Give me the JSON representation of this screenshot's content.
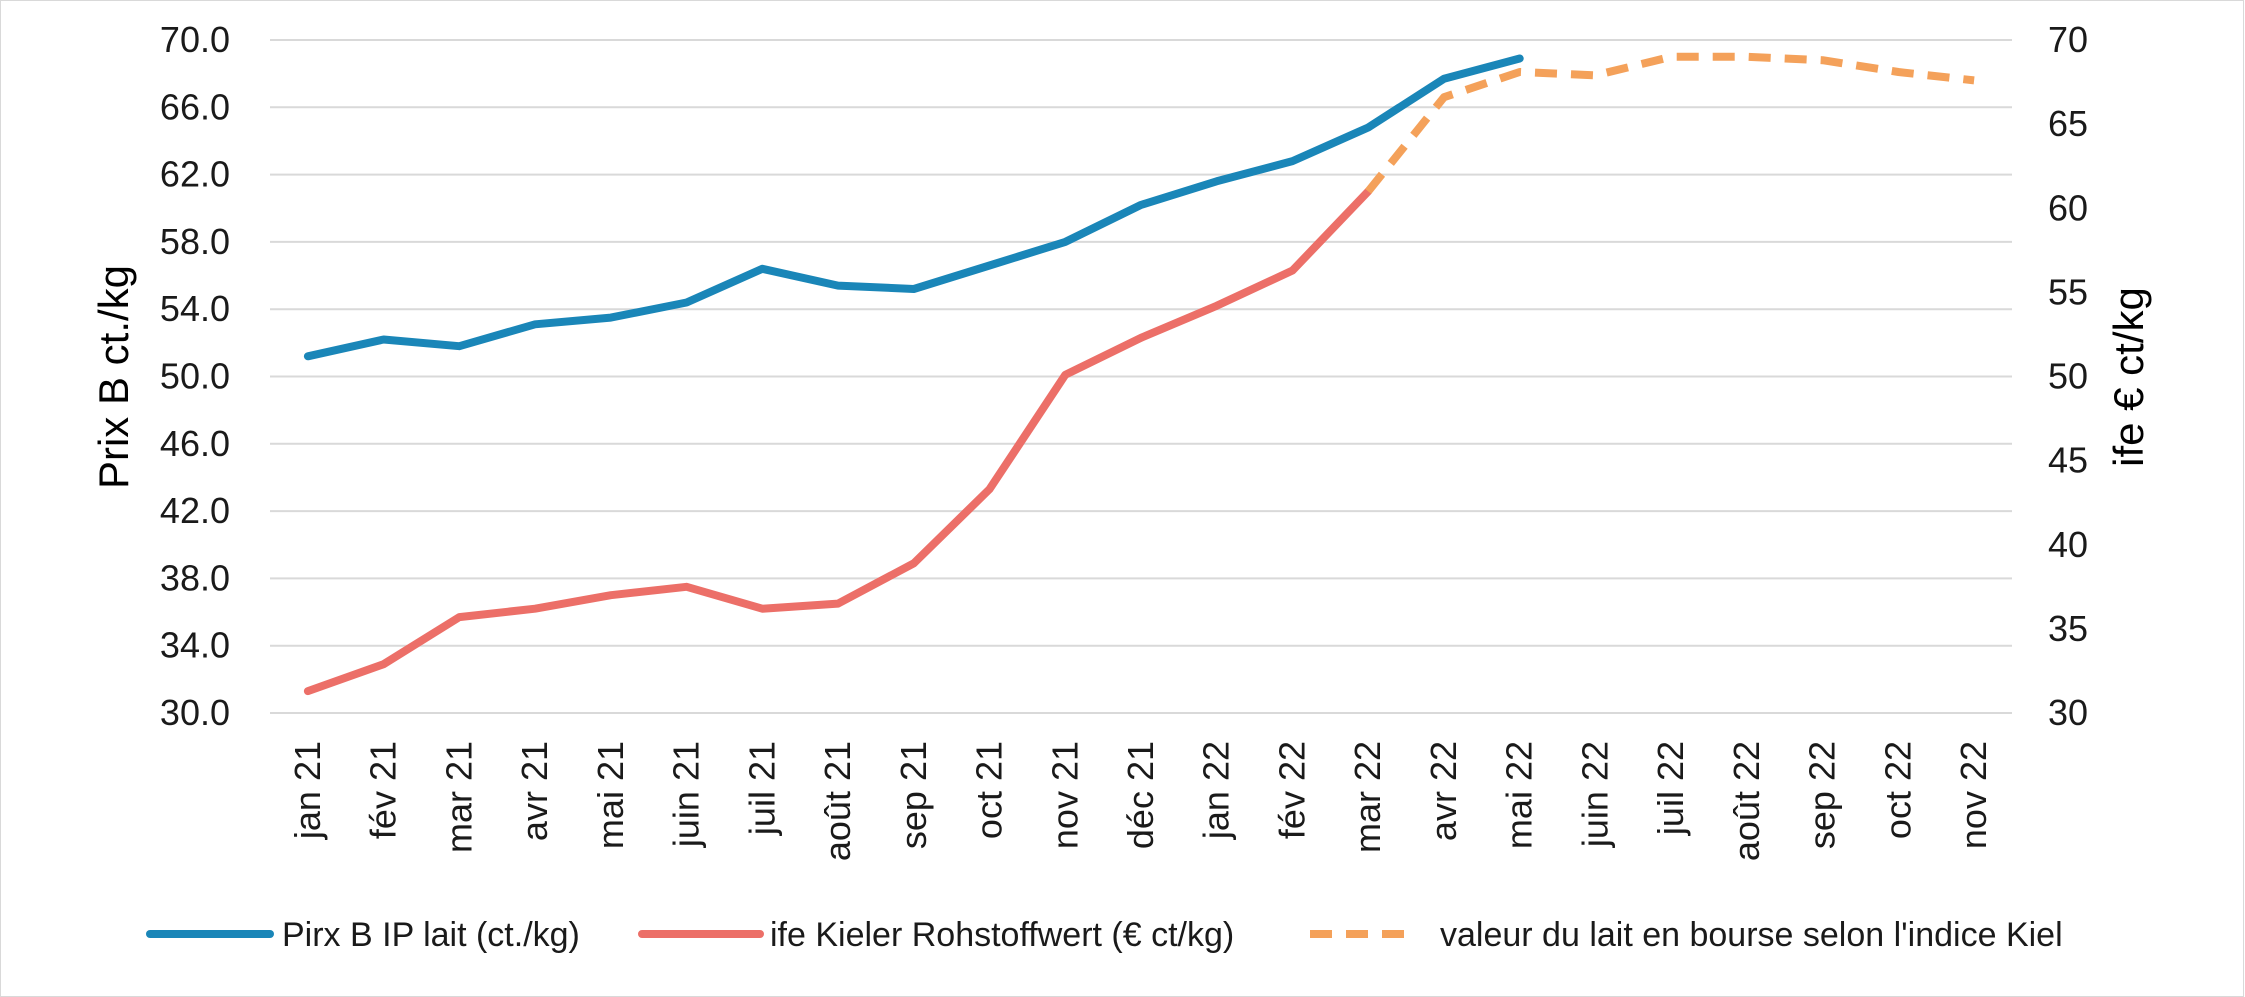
{
  "chart_data": {
    "type": "line",
    "categories": [
      "jan 21",
      "fév 21",
      "mar 21",
      "avr 21",
      "mai 21",
      "juin 21",
      "juil 21",
      "août 21",
      "sep 21",
      "oct 21",
      "nov 21",
      "déc 21",
      "jan 22",
      "fév 22",
      "mar 22",
      "avr 22",
      "mai 22",
      "juin 22",
      "juil 22",
      "août 22",
      "sep 22",
      "oct 22",
      "nov 22"
    ],
    "ylabel": "Prix B ct./kg",
    "y2label": "ife € ct/kg",
    "ylim": [
      30,
      70
    ],
    "y2lim": [
      30,
      70
    ],
    "yticks": [
      "30.0",
      "34.0",
      "38.0",
      "42.0",
      "46.0",
      "50.0",
      "54.0",
      "58.0",
      "62.0",
      "66.0",
      "70.0"
    ],
    "y2ticks": [
      "30",
      "35",
      "40",
      "45",
      "50",
      "55",
      "60",
      "65",
      "70"
    ],
    "grid": "horizontal",
    "legend_position": "bottom",
    "series": [
      {
        "name": "Pirx B IP lait (ct./kg)",
        "axis": "left",
        "style": "solid",
        "color": "#1a86b8",
        "values": [
          51.2,
          52.2,
          51.8,
          53.1,
          53.5,
          54.4,
          56.4,
          55.4,
          55.2,
          56.6,
          58.0,
          60.2,
          61.6,
          62.8,
          64.8,
          67.7,
          68.9,
          null,
          null,
          null,
          null,
          null,
          null
        ]
      },
      {
        "name": "ife Kieler Rohstoffwert (€ ct/kg)",
        "axis": "right",
        "style": "solid",
        "color": "#ec6f68",
        "values": [
          31.3,
          32.9,
          35.7,
          36.2,
          37.0,
          37.5,
          36.2,
          36.5,
          38.9,
          43.3,
          50.1,
          52.3,
          54.2,
          56.3,
          61.0,
          null,
          null,
          null,
          null,
          null,
          null,
          null,
          null
        ]
      },
      {
        "name": "valeur du lait en bourse selon l'indice Kiel",
        "axis": "right",
        "style": "dashed",
        "color": "#f4a15a",
        "values": [
          null,
          null,
          null,
          null,
          null,
          null,
          null,
          null,
          null,
          null,
          null,
          null,
          null,
          null,
          61.0,
          66.6,
          68.1,
          67.9,
          69.0,
          69.0,
          68.8,
          68.1,
          67.6
        ]
      }
    ]
  }
}
